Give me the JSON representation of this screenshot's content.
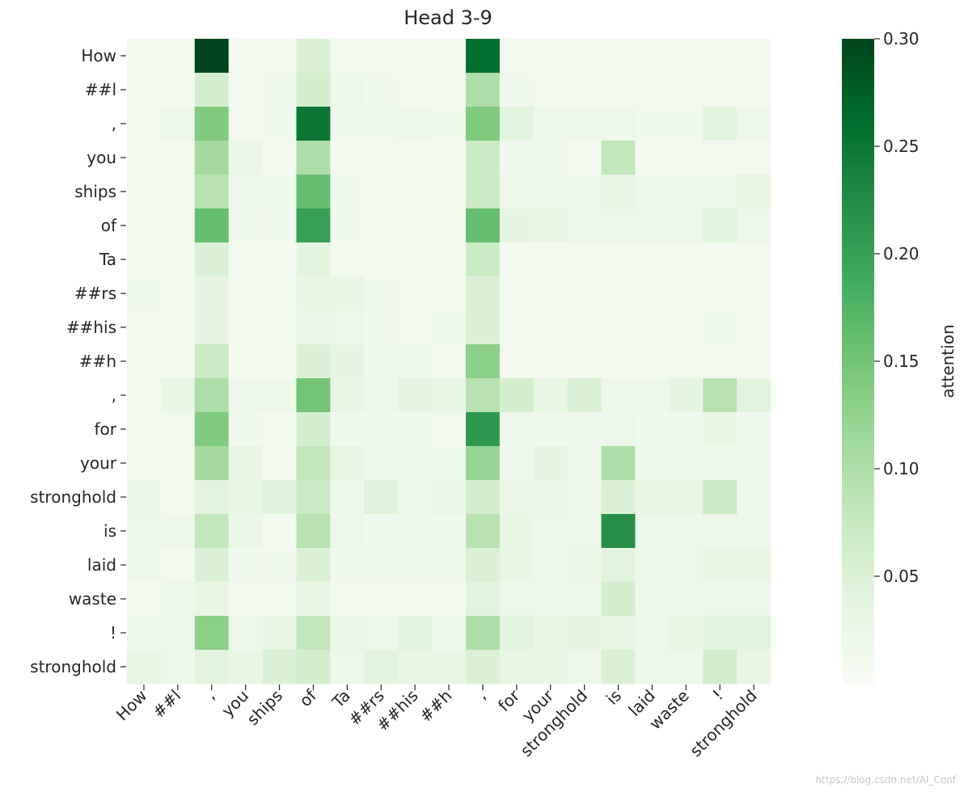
{
  "chart_data": {
    "type": "heatmap",
    "title": "Head 3-9",
    "x_labels": [
      "How",
      "##l",
      ",",
      "you",
      "ships",
      "of",
      "Ta",
      "##rs",
      "##his",
      "##h",
      ",",
      "for",
      "your",
      "stronghold",
      "is",
      "laid",
      "waste",
      "!",
      "stronghold"
    ],
    "y_labels": [
      "How",
      "##l",
      ",",
      "you",
      "ships",
      "of",
      "Ta",
      "##rs",
      "##his",
      "##h",
      ",",
      "for",
      "your",
      "stronghold",
      "is",
      "laid",
      "waste",
      "!",
      "stronghold"
    ],
    "colorbar": {
      "label": "attention",
      "range": [
        0.0,
        0.3
      ],
      "ticks": [
        "0.05",
        "0.10",
        "0.15",
        "0.20",
        "0.25",
        "0.30"
      ],
      "tick_values": [
        0.05,
        0.1,
        0.15,
        0.2,
        0.25,
        0.3
      ],
      "colors": [
        "#f7fcf5",
        "#e5f5e0",
        "#c7e9c0",
        "#a1d99b",
        "#74c476",
        "#41ab5d",
        "#238b45",
        "#006d2c",
        "#00441b"
      ]
    },
    "values": [
      [
        0.01,
        0.01,
        0.3,
        0.01,
        0.01,
        0.05,
        0.01,
        0.01,
        0.01,
        0.01,
        0.26,
        0.01,
        0.01,
        0.01,
        0.01,
        0.01,
        0.01,
        0.01,
        0.01
      ],
      [
        0.01,
        0.01,
        0.06,
        0.01,
        0.015,
        0.06,
        0.02,
        0.015,
        0.01,
        0.01,
        0.1,
        0.015,
        0.01,
        0.01,
        0.01,
        0.01,
        0.01,
        0.01,
        0.01
      ],
      [
        0.01,
        0.02,
        0.14,
        0.01,
        0.015,
        0.25,
        0.015,
        0.015,
        0.02,
        0.015,
        0.14,
        0.04,
        0.02,
        0.02,
        0.02,
        0.015,
        0.015,
        0.04,
        0.02
      ],
      [
        0.01,
        0.01,
        0.11,
        0.025,
        0.01,
        0.1,
        0.01,
        0.01,
        0.01,
        0.01,
        0.07,
        0.015,
        0.02,
        0.01,
        0.08,
        0.01,
        0.01,
        0.01,
        0.01
      ],
      [
        0.01,
        0.01,
        0.09,
        0.02,
        0.015,
        0.16,
        0.015,
        0.01,
        0.01,
        0.01,
        0.07,
        0.02,
        0.02,
        0.02,
        0.03,
        0.02,
        0.02,
        0.02,
        0.03
      ],
      [
        0.01,
        0.01,
        0.16,
        0.015,
        0.015,
        0.2,
        0.015,
        0.01,
        0.01,
        0.01,
        0.16,
        0.035,
        0.03,
        0.02,
        0.02,
        0.02,
        0.02,
        0.04,
        0.02
      ],
      [
        0.01,
        0.01,
        0.05,
        0.01,
        0.01,
        0.04,
        0.01,
        0.01,
        0.01,
        0.01,
        0.07,
        0.01,
        0.01,
        0.01,
        0.01,
        0.01,
        0.01,
        0.01,
        0.01
      ],
      [
        0.015,
        0.01,
        0.035,
        0.01,
        0.01,
        0.03,
        0.03,
        0.015,
        0.01,
        0.01,
        0.05,
        0.01,
        0.01,
        0.01,
        0.01,
        0.01,
        0.01,
        0.01,
        0.01
      ],
      [
        0.01,
        0.01,
        0.035,
        0.01,
        0.01,
        0.025,
        0.02,
        0.015,
        0.01,
        0.015,
        0.05,
        0.01,
        0.01,
        0.01,
        0.01,
        0.01,
        0.01,
        0.02,
        0.01
      ],
      [
        0.01,
        0.01,
        0.07,
        0.01,
        0.01,
        0.05,
        0.035,
        0.015,
        0.02,
        0.01,
        0.13,
        0.01,
        0.01,
        0.01,
        0.01,
        0.01,
        0.01,
        0.01,
        0.01
      ],
      [
        0.01,
        0.03,
        0.1,
        0.02,
        0.02,
        0.15,
        0.03,
        0.02,
        0.035,
        0.03,
        0.09,
        0.06,
        0.03,
        0.05,
        0.02,
        0.02,
        0.035,
        0.09,
        0.04
      ],
      [
        0.01,
        0.01,
        0.14,
        0.015,
        0.01,
        0.06,
        0.015,
        0.015,
        0.015,
        0.01,
        0.21,
        0.02,
        0.015,
        0.015,
        0.02,
        0.015,
        0.015,
        0.03,
        0.015
      ],
      [
        0.01,
        0.01,
        0.11,
        0.03,
        0.01,
        0.08,
        0.03,
        0.015,
        0.02,
        0.015,
        0.12,
        0.02,
        0.035,
        0.02,
        0.1,
        0.02,
        0.02,
        0.02,
        0.02
      ],
      [
        0.025,
        0.01,
        0.04,
        0.03,
        0.045,
        0.07,
        0.02,
        0.045,
        0.02,
        0.025,
        0.06,
        0.025,
        0.025,
        0.02,
        0.05,
        0.03,
        0.03,
        0.07,
        0.02
      ],
      [
        0.02,
        0.02,
        0.08,
        0.025,
        0.01,
        0.09,
        0.02,
        0.015,
        0.015,
        0.015,
        0.09,
        0.03,
        0.02,
        0.02,
        0.22,
        0.02,
        0.02,
        0.02,
        0.02
      ],
      [
        0.02,
        0.01,
        0.05,
        0.015,
        0.015,
        0.05,
        0.015,
        0.015,
        0.015,
        0.015,
        0.05,
        0.03,
        0.02,
        0.025,
        0.04,
        0.02,
        0.02,
        0.03,
        0.03
      ],
      [
        0.01,
        0.02,
        0.03,
        0.01,
        0.01,
        0.03,
        0.01,
        0.01,
        0.01,
        0.01,
        0.04,
        0.02,
        0.02,
        0.02,
        0.06,
        0.02,
        0.02,
        0.02,
        0.02
      ],
      [
        0.02,
        0.02,
        0.13,
        0.02,
        0.03,
        0.08,
        0.025,
        0.02,
        0.04,
        0.02,
        0.1,
        0.04,
        0.03,
        0.035,
        0.03,
        0.02,
        0.03,
        0.04,
        0.04
      ],
      [
        0.03,
        0.02,
        0.04,
        0.03,
        0.05,
        0.06,
        0.02,
        0.04,
        0.03,
        0.03,
        0.05,
        0.03,
        0.03,
        0.02,
        0.05,
        0.02,
        0.02,
        0.06,
        0.03
      ]
    ]
  },
  "watermark": "https://blog.csdn.net/AI_Conf"
}
